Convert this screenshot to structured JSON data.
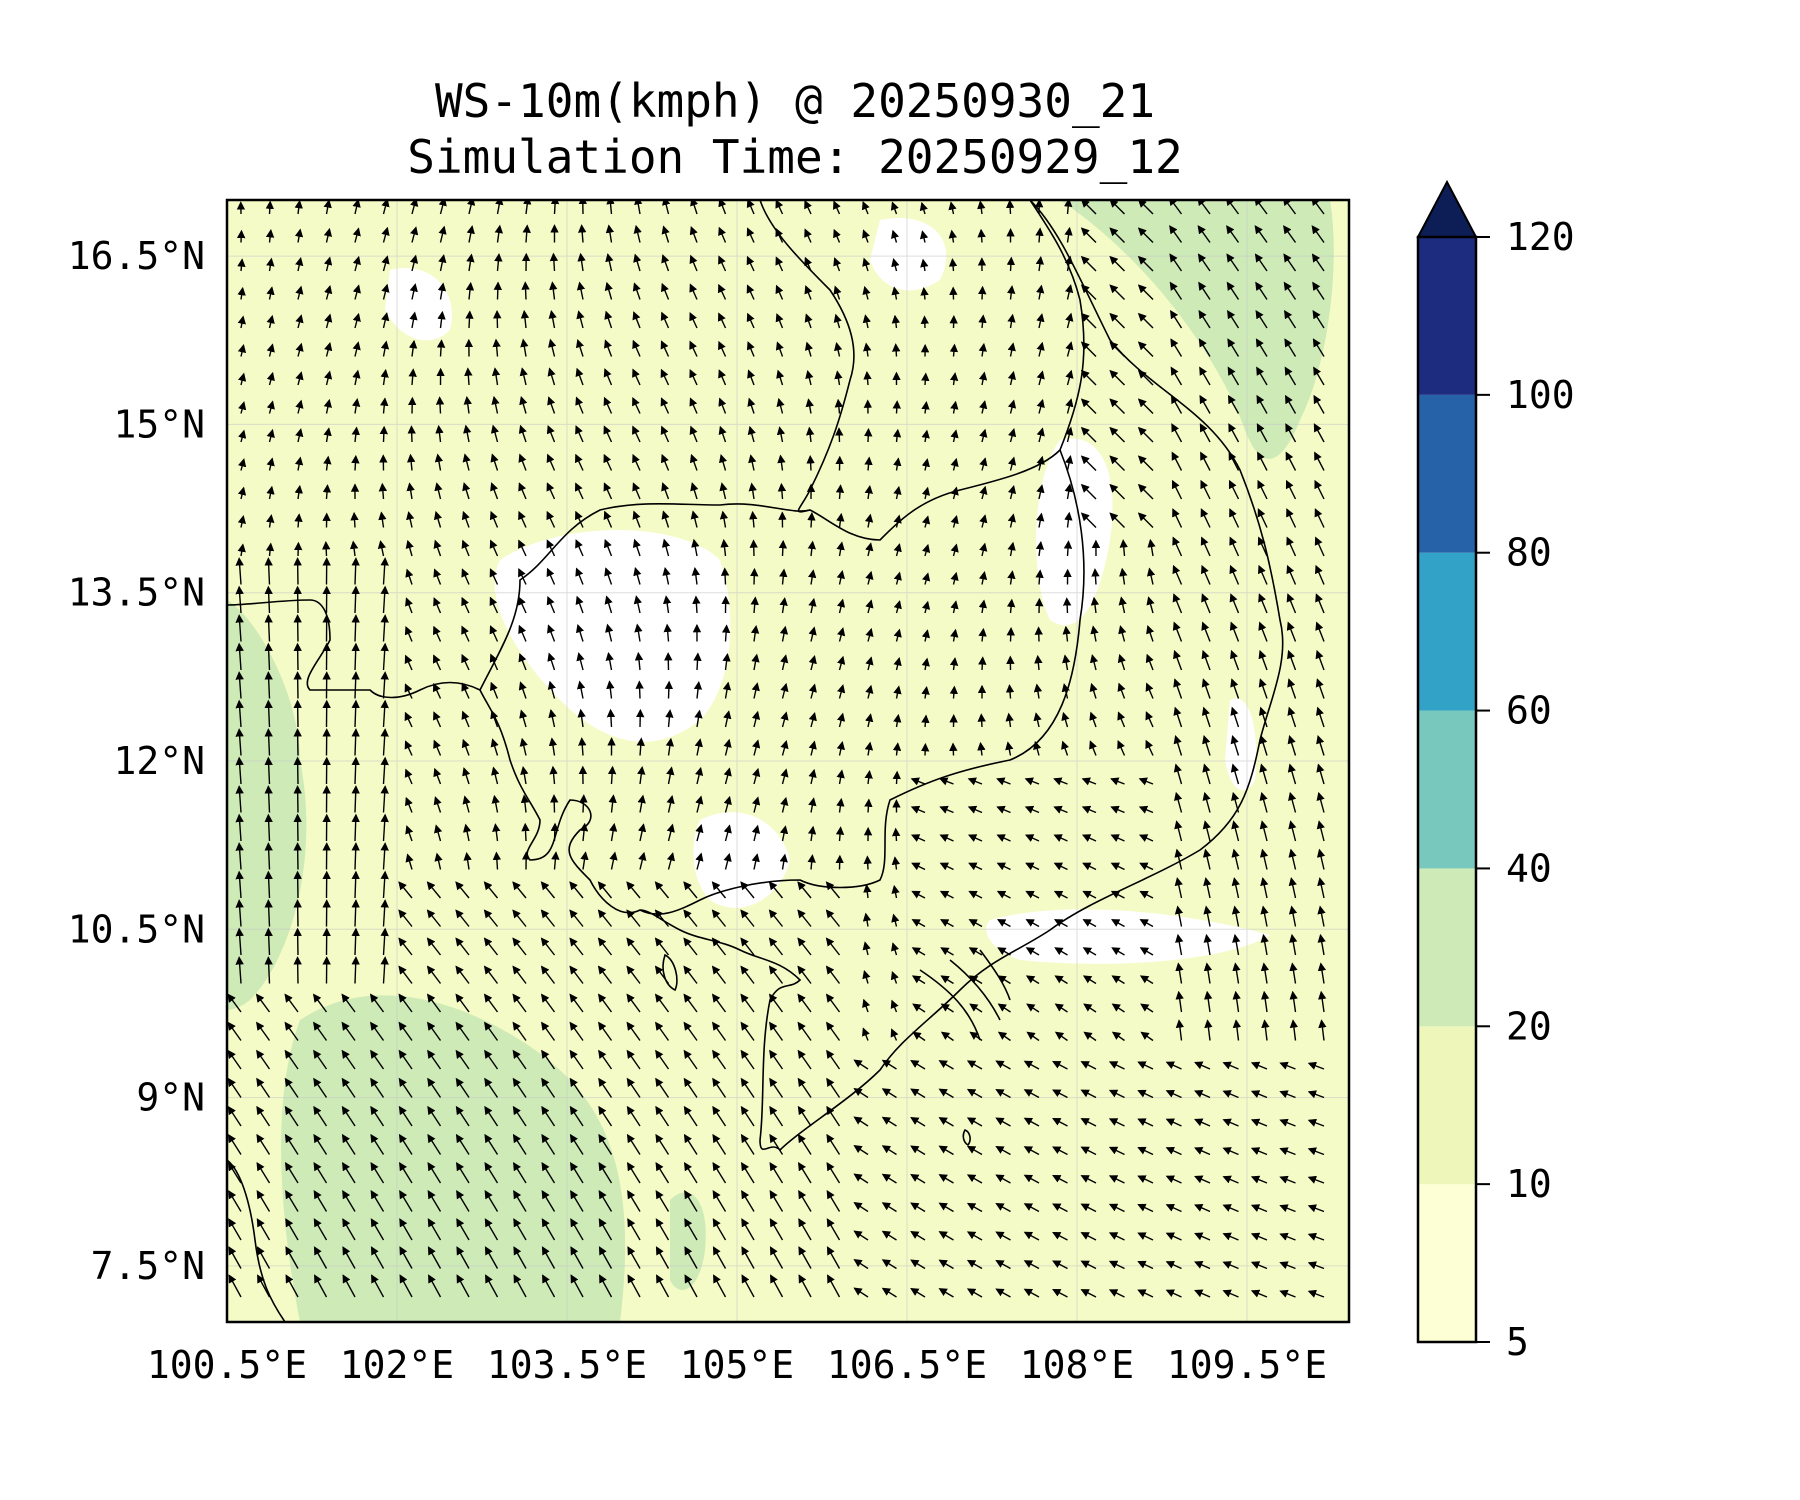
{
  "figure": {
    "title_line1": "WS-10m(kmph) @ 20250930_21",
    "title_line2": "Simulation Time: 20250929_12"
  },
  "axes": {
    "lat_ticks": [
      "16.5°N",
      "15°N",
      "13.5°N",
      "12°N",
      "10.5°N",
      "9°N",
      "7.5°N"
    ],
    "lat_values": [
      16.5,
      15,
      13.5,
      12,
      10.5,
      9,
      7.5
    ],
    "lon_ticks": [
      "100.5°E",
      "102°E",
      "103.5°E",
      "105°E",
      "106.5°E",
      "108°E",
      "109.5°E"
    ],
    "lon_values": [
      100.5,
      102,
      103.5,
      105,
      106.5,
      108,
      109.5
    ],
    "lon_range": [
      100.5,
      110.4
    ],
    "lat_range": [
      7.0,
      17.0
    ],
    "gridlines": true
  },
  "colorbar": {
    "levels": [
      5,
      10,
      20,
      40,
      60,
      80,
      100,
      120
    ],
    "labels": [
      "5",
      "10",
      "20",
      "40",
      "60",
      "80",
      "100",
      "120"
    ],
    "colors": [
      "#fdffd4",
      "#eef7b9",
      "#cdeab7",
      "#79c8bd",
      "#32a3c7",
      "#2562a8",
      "#1e2c80"
    ],
    "extend_color": "#0d1d55",
    "extend": "max"
  },
  "chart_data": {
    "type": "map",
    "variable": "WS-10m(kmph)",
    "valid_time": "20250930_21",
    "simulation_time": "20250929_12",
    "wind_regimes": [
      {
        "region": "Gulf of Thailand west coast",
        "speed_band": "20-40",
        "direction": "north"
      },
      {
        "region": "Gulf of Thailand south",
        "speed_band": "20-40",
        "direction": "northwest"
      },
      {
        "region": "Central Cambodia / Tonle Sap",
        "speed_band": "5-10",
        "direction": "north"
      },
      {
        "region": "Vietnam central coast",
        "speed_band": "20-40",
        "direction": "northwest"
      },
      {
        "region": "South China Sea east",
        "speed_band": "10-20",
        "direction": "west"
      }
    ]
  }
}
